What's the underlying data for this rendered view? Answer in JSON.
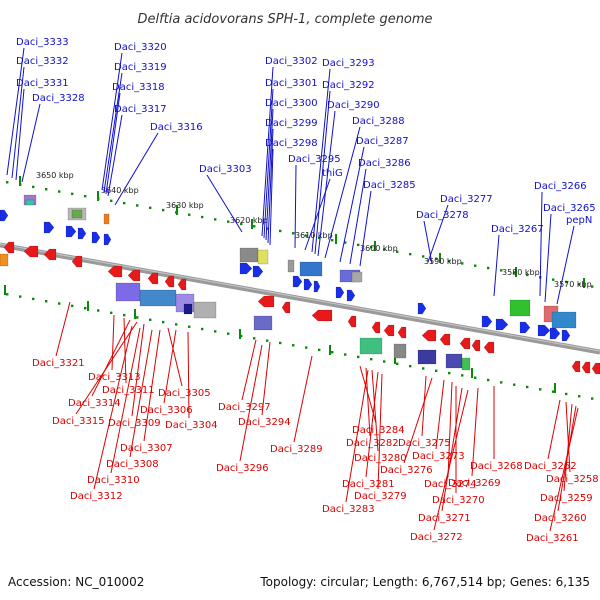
{
  "title": "Delftia acidovorans SPH-1, complete genome",
  "footer": {
    "accession": "Accession: NC_010002",
    "topology": "Topology: circular; Length: 6,767,514 bp; Genes: 6,135"
  },
  "colors": {
    "top_labels": "#1010cc",
    "bottom_labels": "#dd0000",
    "backbone": "#808080",
    "tick_green": "#0a8a0a",
    "forward_gene": "#1a2ee6",
    "reverse_gene": "#e61a1a"
  },
  "kbp_ticks": [
    "3650 kbp",
    "3640 kbp",
    "3630 kbp",
    "3620 kbp",
    "3610 kbp",
    "3600 kbp",
    "3590 kbp",
    "3580 kbp",
    "3570 kbp"
  ],
  "top_labels": [
    "Daci_3333",
    "Daci_3332",
    "Daci_3331",
    "Daci_3328",
    "Daci_3320",
    "Daci_3319",
    "Daci_3318",
    "Daci_3317",
    "Daci_3316",
    "Daci_3303",
    "Daci_3302",
    "Daci_3301",
    "Daci_3300",
    "Daci_3299",
    "Daci_3298",
    "Daci_3295",
    "thiG",
    "Daci_3293",
    "Daci_3292",
    "Daci_3290",
    "Daci_3288",
    "Daci_3287",
    "Daci_3286",
    "Daci_3285",
    "Daci_3277",
    "Daci_3278",
    "Daci_3267",
    "Daci_3266",
    "Daci_3265",
    "pepN"
  ],
  "bottom_labels": [
    "Daci_3321",
    "Daci_3313",
    "Daci_3311",
    "Daci_3314",
    "Daci_3315",
    "Daci_3309",
    "Daci_3305",
    "Daci_3306",
    "Daci_3304",
    "Daci_3307",
    "Daci_3308",
    "Daci_3310",
    "Daci_3312",
    "Daci_3297",
    "Daci_3294",
    "Daci_3296",
    "Daci_3289",
    "Daci_3284",
    "Daci_3282",
    "Daci_3280",
    "Daci_3281",
    "Daci_3283",
    "Daci_3279",
    "Daci_3275",
    "Daci_3276",
    "Daci_3273",
    "Daci_3274",
    "Daci_3270",
    "Daci_3271",
    "Daci_3272",
    "Daci_3269",
    "Daci_3268",
    "Daci_3262",
    "Daci_3258",
    "Daci_3259",
    "Daci_3260",
    "Daci_3261"
  ]
}
